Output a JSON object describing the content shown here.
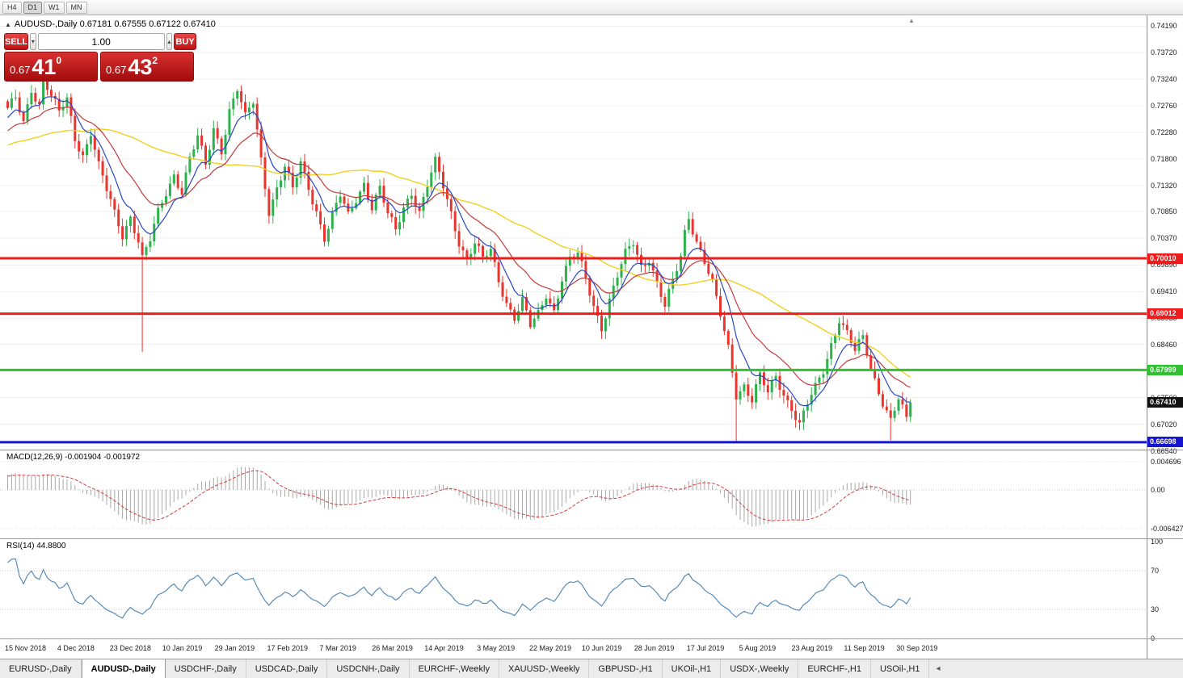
{
  "toolbar": {
    "timeframes": [
      {
        "label": "H4",
        "active": false
      },
      {
        "label": "D1",
        "active": true
      },
      {
        "label": "W1",
        "active": false
      },
      {
        "label": "MN",
        "active": false
      }
    ]
  },
  "chart": {
    "title": {
      "symbol": "AUDUSD-,Daily",
      "open": "0.67181",
      "high": "0.67555",
      "low": "0.67122",
      "close": "0.67410"
    },
    "trade_panel": {
      "sell_label": "SELL",
      "buy_label": "BUY",
      "volume": "1.00",
      "bid": {
        "prefix": "0.67",
        "big": "41",
        "sup": "0"
      },
      "ask": {
        "prefix": "0.67",
        "big": "43",
        "sup": "2"
      }
    },
    "axis_ticks": [
      "0.74190",
      "0.73720",
      "0.73240",
      "0.72760",
      "0.72280",
      "0.71800",
      "0.71320",
      "0.70850",
      "0.70370",
      "0.69890",
      "0.69410",
      "0.68930",
      "0.68460",
      "0.67980",
      "0.67500",
      "0.67020",
      "0.66540"
    ],
    "levels": [
      {
        "price": 0.7001,
        "label": "0.70010",
        "color": "#ee1c1c"
      },
      {
        "price": 0.69012,
        "label": "0.69012",
        "color": "#ee1c1c"
      },
      {
        "price": 0.67999,
        "label": "0.67999",
        "color": "#2fc12f"
      },
      {
        "price": 0.66698,
        "label": "0.66698",
        "color": "#1515cf"
      }
    ],
    "current_price": {
      "price": 0.6741,
      "label": "0.67410",
      "bg": "#111111"
    },
    "colors": {
      "up": "#2db14d",
      "down": "#e8352e",
      "ma_fast": "#2746c4",
      "ma_mid": "#c23b3b",
      "ma_slow": "#f0d020"
    }
  },
  "macd": {
    "label": "MACD(12,26,9) -0.001904 -0.001972",
    "axis_top": "0.004696",
    "axis_zero": "0.00",
    "axis_bottom": "-0.006427",
    "hist_color": "#a8a8a8",
    "signal_color": "#d04040"
  },
  "rsi": {
    "label": "RSI(14) 44.8800",
    "axis": [
      "100",
      "70",
      "30",
      "0"
    ],
    "line_color": "#4a82b4"
  },
  "dates": [
    "15 Nov 2018",
    "4 Dec 2018",
    "23 Dec 2018",
    "10 Jan 2019",
    "29 Jan 2019",
    "17 Feb 2019",
    "7 Mar 2019",
    "26 Mar 2019",
    "14 Apr 2019",
    "3 May 2019",
    "22 May 2019",
    "10 Jun 2019",
    "28 Jun 2019",
    "17 Jul 2019",
    "5 Aug 2019",
    "23 Aug 2019",
    "11 Sep 2019",
    "30 Sep 2019"
  ],
  "tabs": [
    {
      "label": "EURUSD-,Daily",
      "active": false
    },
    {
      "label": "AUDUSD-,Daily",
      "active": true
    },
    {
      "label": "USDCHF-,Daily",
      "active": false
    },
    {
      "label": "USDCAD-,Daily",
      "active": false
    },
    {
      "label": "USDCNH-,Daily",
      "active": false
    },
    {
      "label": "EURCHF-,Weekly",
      "active": false
    },
    {
      "label": "XAUUSD-,Weekly",
      "active": false
    },
    {
      "label": "GBPUSD-,H1",
      "active": false
    },
    {
      "label": "UKOil-,H1",
      "active": false
    },
    {
      "label": "USDX-,Weekly",
      "active": false
    },
    {
      "label": "EURCHF-,H1",
      "active": false
    },
    {
      "label": "USOil-,H1",
      "active": false
    }
  ],
  "chart_data": {
    "type": "candlestick",
    "symbol": "AUDUSD",
    "timeframe": "Daily",
    "bar_count": 229,
    "last_close": 0.6741,
    "visible_price_range": [
      0.6654,
      0.7419
    ],
    "ohlc_current": {
      "open": 0.67181,
      "high": 0.67555,
      "low": 0.67122,
      "close": 0.6741
    },
    "horizontal_levels": [
      0.7001,
      0.69012,
      0.67999,
      0.66698
    ],
    "indicators": {
      "macd_params": [
        12,
        26,
        9
      ],
      "macd_values": [
        -0.001904,
        -0.001972
      ],
      "rsi_period": 14,
      "rsi_value": 44.88
    },
    "price_anchors": [
      [
        0,
        0.7265
      ],
      [
        2,
        0.7285
      ],
      [
        4,
        0.7245
      ],
      [
        6,
        0.731
      ],
      [
        8,
        0.728
      ],
      [
        9,
        0.733
      ],
      [
        11,
        0.729
      ],
      [
        13,
        0.726
      ],
      [
        15,
        0.7285
      ],
      [
        17,
        0.722
      ],
      [
        19,
        0.719
      ],
      [
        21,
        0.723
      ],
      [
        23,
        0.7165
      ],
      [
        25,
        0.712
      ],
      [
        27,
        0.708
      ],
      [
        29,
        0.7045
      ],
      [
        31,
        0.708
      ],
      [
        33,
        0.7035
      ],
      [
        34,
        0.7
      ],
      [
        36,
        0.703
      ],
      [
        38,
        0.708
      ],
      [
        40,
        0.712
      ],
      [
        42,
        0.7155
      ],
      [
        44,
        0.7125
      ],
      [
        46,
        0.718
      ],
      [
        48,
        0.7215
      ],
      [
        50,
        0.7165
      ],
      [
        52,
        0.7235
      ],
      [
        54,
        0.72
      ],
      [
        56,
        0.727
      ],
      [
        58,
        0.7305
      ],
      [
        60,
        0.725
      ],
      [
        62,
        0.728
      ],
      [
        64,
        0.718
      ],
      [
        66,
        0.709
      ],
      [
        68,
        0.713
      ],
      [
        70,
        0.7165
      ],
      [
        72,
        0.712
      ],
      [
        74,
        0.717
      ],
      [
        76,
        0.713
      ],
      [
        78,
        0.709
      ],
      [
        80,
        0.704
      ],
      [
        82,
        0.7075
      ],
      [
        84,
        0.711
      ],
      [
        86,
        0.7075
      ],
      [
        88,
        0.711
      ],
      [
        90,
        0.714
      ],
      [
        92,
        0.7095
      ],
      [
        94,
        0.7125
      ],
      [
        96,
        0.7075
      ],
      [
        98,
        0.705
      ],
      [
        100,
        0.7095
      ],
      [
        102,
        0.7125
      ],
      [
        104,
        0.7085
      ],
      [
        106,
        0.713
      ],
      [
        108,
        0.717
      ],
      [
        110,
        0.713
      ],
      [
        112,
        0.7085
      ],
      [
        114,
        0.7035
      ],
      [
        116,
        0.7
      ],
      [
        118,
        0.7025
      ],
      [
        120,
        0.6995
      ],
      [
        122,
        0.7015
      ],
      [
        124,
        0.6965
      ],
      [
        126,
        0.6925
      ],
      [
        128,
        0.6895
      ],
      [
        130,
        0.692
      ],
      [
        132,
        0.6875
      ],
      [
        134,
        0.69
      ],
      [
        136,
        0.694
      ],
      [
        138,
        0.691
      ],
      [
        140,
        0.6965
      ],
      [
        142,
        0.6995
      ],
      [
        144,
        0.7005
      ],
      [
        146,
        0.6965
      ],
      [
        148,
        0.692
      ],
      [
        150,
        0.688
      ],
      [
        152,
        0.6925
      ],
      [
        154,
        0.6965
      ],
      [
        156,
        0.7005
      ],
      [
        158,
        0.703
      ],
      [
        160,
        0.699
      ],
      [
        162,
        0.7005
      ],
      [
        164,
        0.6955
      ],
      [
        166,
        0.691
      ],
      [
        168,
        0.6955
      ],
      [
        170,
        0.7005
      ],
      [
        171,
        0.705
      ],
      [
        172,
        0.708
      ],
      [
        174,
        0.7035
      ],
      [
        176,
        0.6995
      ],
      [
        178,
        0.695
      ],
      [
        180,
        0.6895
      ],
      [
        182,
        0.684
      ],
      [
        184,
        0.676
      ],
      [
        186,
        0.6775
      ],
      [
        188,
        0.6745
      ],
      [
        190,
        0.6785
      ],
      [
        192,
        0.6755
      ],
      [
        194,
        0.679
      ],
      [
        196,
        0.676
      ],
      [
        198,
        0.6735
      ],
      [
        200,
        0.67
      ],
      [
        202,
        0.6735
      ],
      [
        204,
        0.6765
      ],
      [
        206,
        0.68
      ],
      [
        208,
        0.685
      ],
      [
        210,
        0.6895
      ],
      [
        212,
        0.6865
      ],
      [
        214,
        0.683
      ],
      [
        216,
        0.6855
      ],
      [
        218,
        0.6805
      ],
      [
        220,
        0.6765
      ],
      [
        222,
        0.673
      ],
      [
        223,
        0.671
      ],
      [
        225,
        0.6745
      ],
      [
        227,
        0.6705
      ],
      [
        228,
        0.6741
      ]
    ],
    "long_wicks": [
      [
        34,
        0.6832
      ],
      [
        184,
        0.6671
      ],
      [
        223,
        0.6673
      ]
    ]
  }
}
